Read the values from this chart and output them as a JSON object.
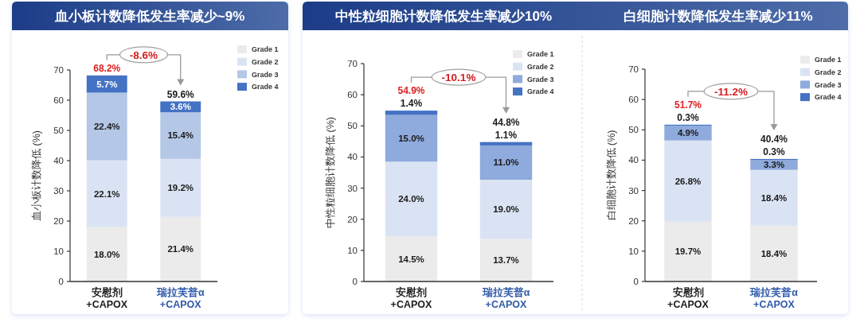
{
  "chart_data": [
    {
      "type": "bar",
      "title": "血小板计数降低发生率减少~9%",
      "ylabel": "血小板计数降低 (%)",
      "categories": [
        "安慰剂 +CAPOX",
        "瑞拉芙普α +CAPOX"
      ],
      "stacked": true,
      "ylim": [
        0,
        70
      ],
      "yticks": [
        0,
        10,
        20,
        30,
        40,
        50,
        60,
        70
      ],
      "legend": "top right",
      "series": [
        {
          "name": "Grade 1",
          "color": "#ebebeb",
          "values": [
            18.0,
            21.4
          ],
          "value_labels": [
            "18.0%",
            "21.4%"
          ]
        },
        {
          "name": "Grade 2",
          "color": "#dae3f3",
          "values": [
            22.1,
            19.2
          ],
          "value_labels": [
            "22.1%",
            "19.2%"
          ]
        },
        {
          "name": "Grade 3",
          "color": "#b4c7e7",
          "values": [
            22.4,
            15.4
          ],
          "value_labels": [
            "22.4%",
            "15.4%"
          ]
        },
        {
          "name": "Grade 4",
          "color": "#4472c4",
          "values": [
            5.7,
            3.6
          ],
          "value_labels": [
            "5.7%",
            "3.6%"
          ]
        }
      ],
      "totals": [
        "68.2%",
        "59.6%"
      ],
      "annotations": [
        "-8.6%"
      ]
    },
    {
      "type": "bar",
      "title": "中性粒细胞计数降低发生率减少10%",
      "ylabel": "中性粒细胞计数降低 (%)",
      "categories": [
        "安慰剂 +CAPOX",
        "瑞拉芙普α +CAPOX"
      ],
      "stacked": true,
      "ylim": [
        0,
        70
      ],
      "yticks": [
        0,
        10,
        20,
        30,
        40,
        50,
        60,
        70
      ],
      "legend": "top right",
      "series": [
        {
          "name": "Grade 1",
          "color": "#ebebeb",
          "values": [
            14.5,
            13.7
          ],
          "value_labels": [
            "14.5%",
            "13.7%"
          ]
        },
        {
          "name": "Grade 2",
          "color": "#dae3f3",
          "values": [
            24.0,
            19.0
          ],
          "value_labels": [
            "24.0%",
            "19.0%"
          ]
        },
        {
          "name": "Grade 3",
          "color": "#8faadc",
          "values": [
            15.0,
            11.0
          ],
          "value_labels": [
            "15.0%",
            "11.0%"
          ]
        },
        {
          "name": "Grade 4",
          "color": "#4472c4",
          "values": [
            1.4,
            1.1
          ],
          "value_labels": [
            "1.4%",
            "1.1%"
          ]
        }
      ],
      "totals": [
        "54.9%",
        "44.8%"
      ],
      "annotations": [
        "-10.1%"
      ]
    },
    {
      "type": "bar",
      "title": "白细胞计数降低发生率减少11%",
      "ylabel": "白细胞计数降低 (%)",
      "categories": [
        "安慰剂 +CAPOX",
        "瑞拉芙普α +CAPOX"
      ],
      "stacked": true,
      "ylim": [
        0,
        70
      ],
      "yticks": [
        0,
        10,
        20,
        30,
        40,
        50,
        60,
        70
      ],
      "legend": "top right",
      "series": [
        {
          "name": "Grade 1",
          "color": "#ebebeb",
          "values": [
            19.7,
            18.4
          ],
          "value_labels": [
            "19.7%",
            "18.4%"
          ]
        },
        {
          "name": "Grade 2",
          "color": "#dae3f3",
          "values": [
            26.8,
            18.4
          ],
          "value_labels": [
            "26.8%",
            "18.4%"
          ]
        },
        {
          "name": "Grade 3",
          "color": "#8faadc",
          "values": [
            4.9,
            3.3
          ],
          "value_labels": [
            "4.9%",
            "3.3%"
          ]
        },
        {
          "name": "Grade 4",
          "color": "#4472c4",
          "values": [
            0.3,
            0.3
          ],
          "value_labels": [
            "0.3%",
            "0.3%"
          ]
        }
      ],
      "totals": [
        "51.7%",
        "40.4%"
      ],
      "annotations": [
        "-11.2%"
      ]
    }
  ]
}
